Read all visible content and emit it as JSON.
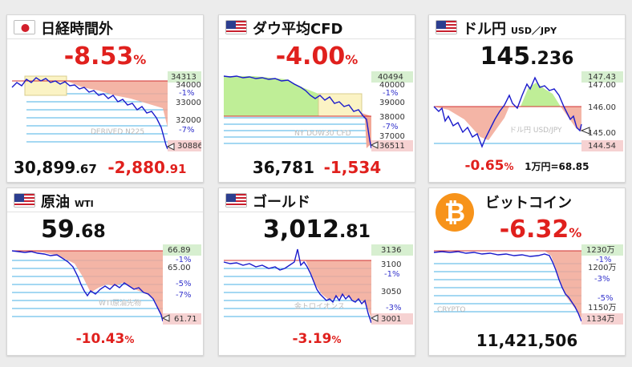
{
  "cards": [
    {
      "id": "nikkei",
      "title": "日経時間外",
      "subtitle": "",
      "flag": "japan-flag",
      "change_pct": "-8.53",
      "pct_unit": "%",
      "value_int": "30,899",
      "value_dec": ".67",
      "change_int": "-2,880",
      "change_dec": ".91",
      "watermark": "DERIVED N225",
      "ticks": [
        "34313",
        "34000",
        "-1%",
        "33000",
        "32000",
        "-7%",
        "30886"
      ],
      "chart_data": {
        "type": "line",
        "title": "",
        "y_labels": [
          34313,
          34000,
          33000,
          32000,
          30886
        ],
        "pct_labels": [
          "-1%",
          "-7%"
        ],
        "trend": "down",
        "start": 34313,
        "end": 30886
      }
    },
    {
      "id": "dow",
      "title": "ダウ平均CFD",
      "subtitle": "",
      "flag": "usa-flag",
      "change_pct": "-4.00",
      "pct_unit": "%",
      "value_int": "36,781",
      "change_int": "-1,534",
      "watermark": "NY DOW30 CFD",
      "ticks": [
        "40494",
        "40000",
        "-1%",
        "39000",
        "38000",
        "-7%",
        "37000",
        "36511"
      ],
      "chart_data": {
        "type": "line",
        "title": "",
        "y_labels": [
          40494,
          40000,
          39000,
          38000,
          37000,
          36511
        ],
        "pct_labels": [
          "-1%",
          "-7%"
        ],
        "trend": "down",
        "start": 40494,
        "end": 36511
      }
    },
    {
      "id": "usdjpy",
      "title": "ドル円",
      "subtitle": "USD／JPY",
      "flag": "usa-flag",
      "price_int": "145",
      "price_dec": ".236",
      "change_pct": "-0.65",
      "pct_unit": "%",
      "note": "1万円=68.85",
      "watermark": "ドル円 USD/JPY",
      "ticks": [
        "147.43",
        "147.00",
        "146.00",
        "145.00",
        "144.54"
      ],
      "chart_data": {
        "type": "line",
        "title": "",
        "y_labels": [
          147.43,
          147.0,
          146.0,
          145.0,
          144.54
        ],
        "trend": "volatile",
        "start": 146.0,
        "end": 145.236
      }
    },
    {
      "id": "oil",
      "title": "原油",
      "subtitle": "WTI",
      "flag": "usa-flag",
      "price_int": "59",
      "price_dec": ".68",
      "change_pct": "-10.43",
      "pct_unit": "%",
      "watermark": "WTI原油先物",
      "ticks": [
        "66.89",
        "-1%",
        "65.00",
        "-5%",
        "-7%",
        "61.71"
      ],
      "chart_data": {
        "type": "line",
        "title": "",
        "y_labels": [
          66.89,
          65.0,
          61.71
        ],
        "pct_labels": [
          "-1%",
          "-5%",
          "-7%"
        ],
        "trend": "down",
        "start": 66.89,
        "end": 61.71
      }
    },
    {
      "id": "gold",
      "title": "ゴールド",
      "subtitle": "",
      "flag": "usa-flag",
      "price_int": "3,012",
      "price_dec": ".81",
      "change_pct": "-3.19",
      "pct_unit": "%",
      "watermark": "金トロイオンス",
      "ticks": [
        "3136",
        "3100",
        "-1%",
        "3050",
        "-3%",
        "3001"
      ],
      "chart_data": {
        "type": "line",
        "title": "",
        "y_labels": [
          3136,
          3100,
          3050,
          3001
        ],
        "pct_labels": [
          "-1%",
          "-3%"
        ],
        "trend": "down",
        "start": 3136,
        "end": 3001
      }
    },
    {
      "id": "bitcoin",
      "title": "ビットコイン",
      "subtitle": "",
      "flag": "bitcoin-icon",
      "change_pct": "-6.32",
      "pct_unit": "%",
      "value_int": "11,421,506",
      "watermark": "CRYPTO",
      "ticks": [
        "1230万",
        "-1%",
        "1200万",
        "-3%",
        "-5%",
        "1150万",
        "1134万"
      ],
      "chart_data": {
        "type": "line",
        "title": "",
        "y_labels": [
          "1230万",
          "1200万",
          "1150万",
          "1134万"
        ],
        "pct_labels": [
          "-1%",
          "-3%",
          "-5%"
        ],
        "trend": "down",
        "start": 12300000,
        "end": 11340000
      }
    }
  ],
  "colors": {
    "negative": "#e0201d",
    "line": "#1a1acc",
    "fill_down": "#f2a897",
    "fill_up": "#b8ec8c",
    "ref_line": "#d03030",
    "grid": "#4ab0e6",
    "bitcoin": "#f7931a"
  }
}
